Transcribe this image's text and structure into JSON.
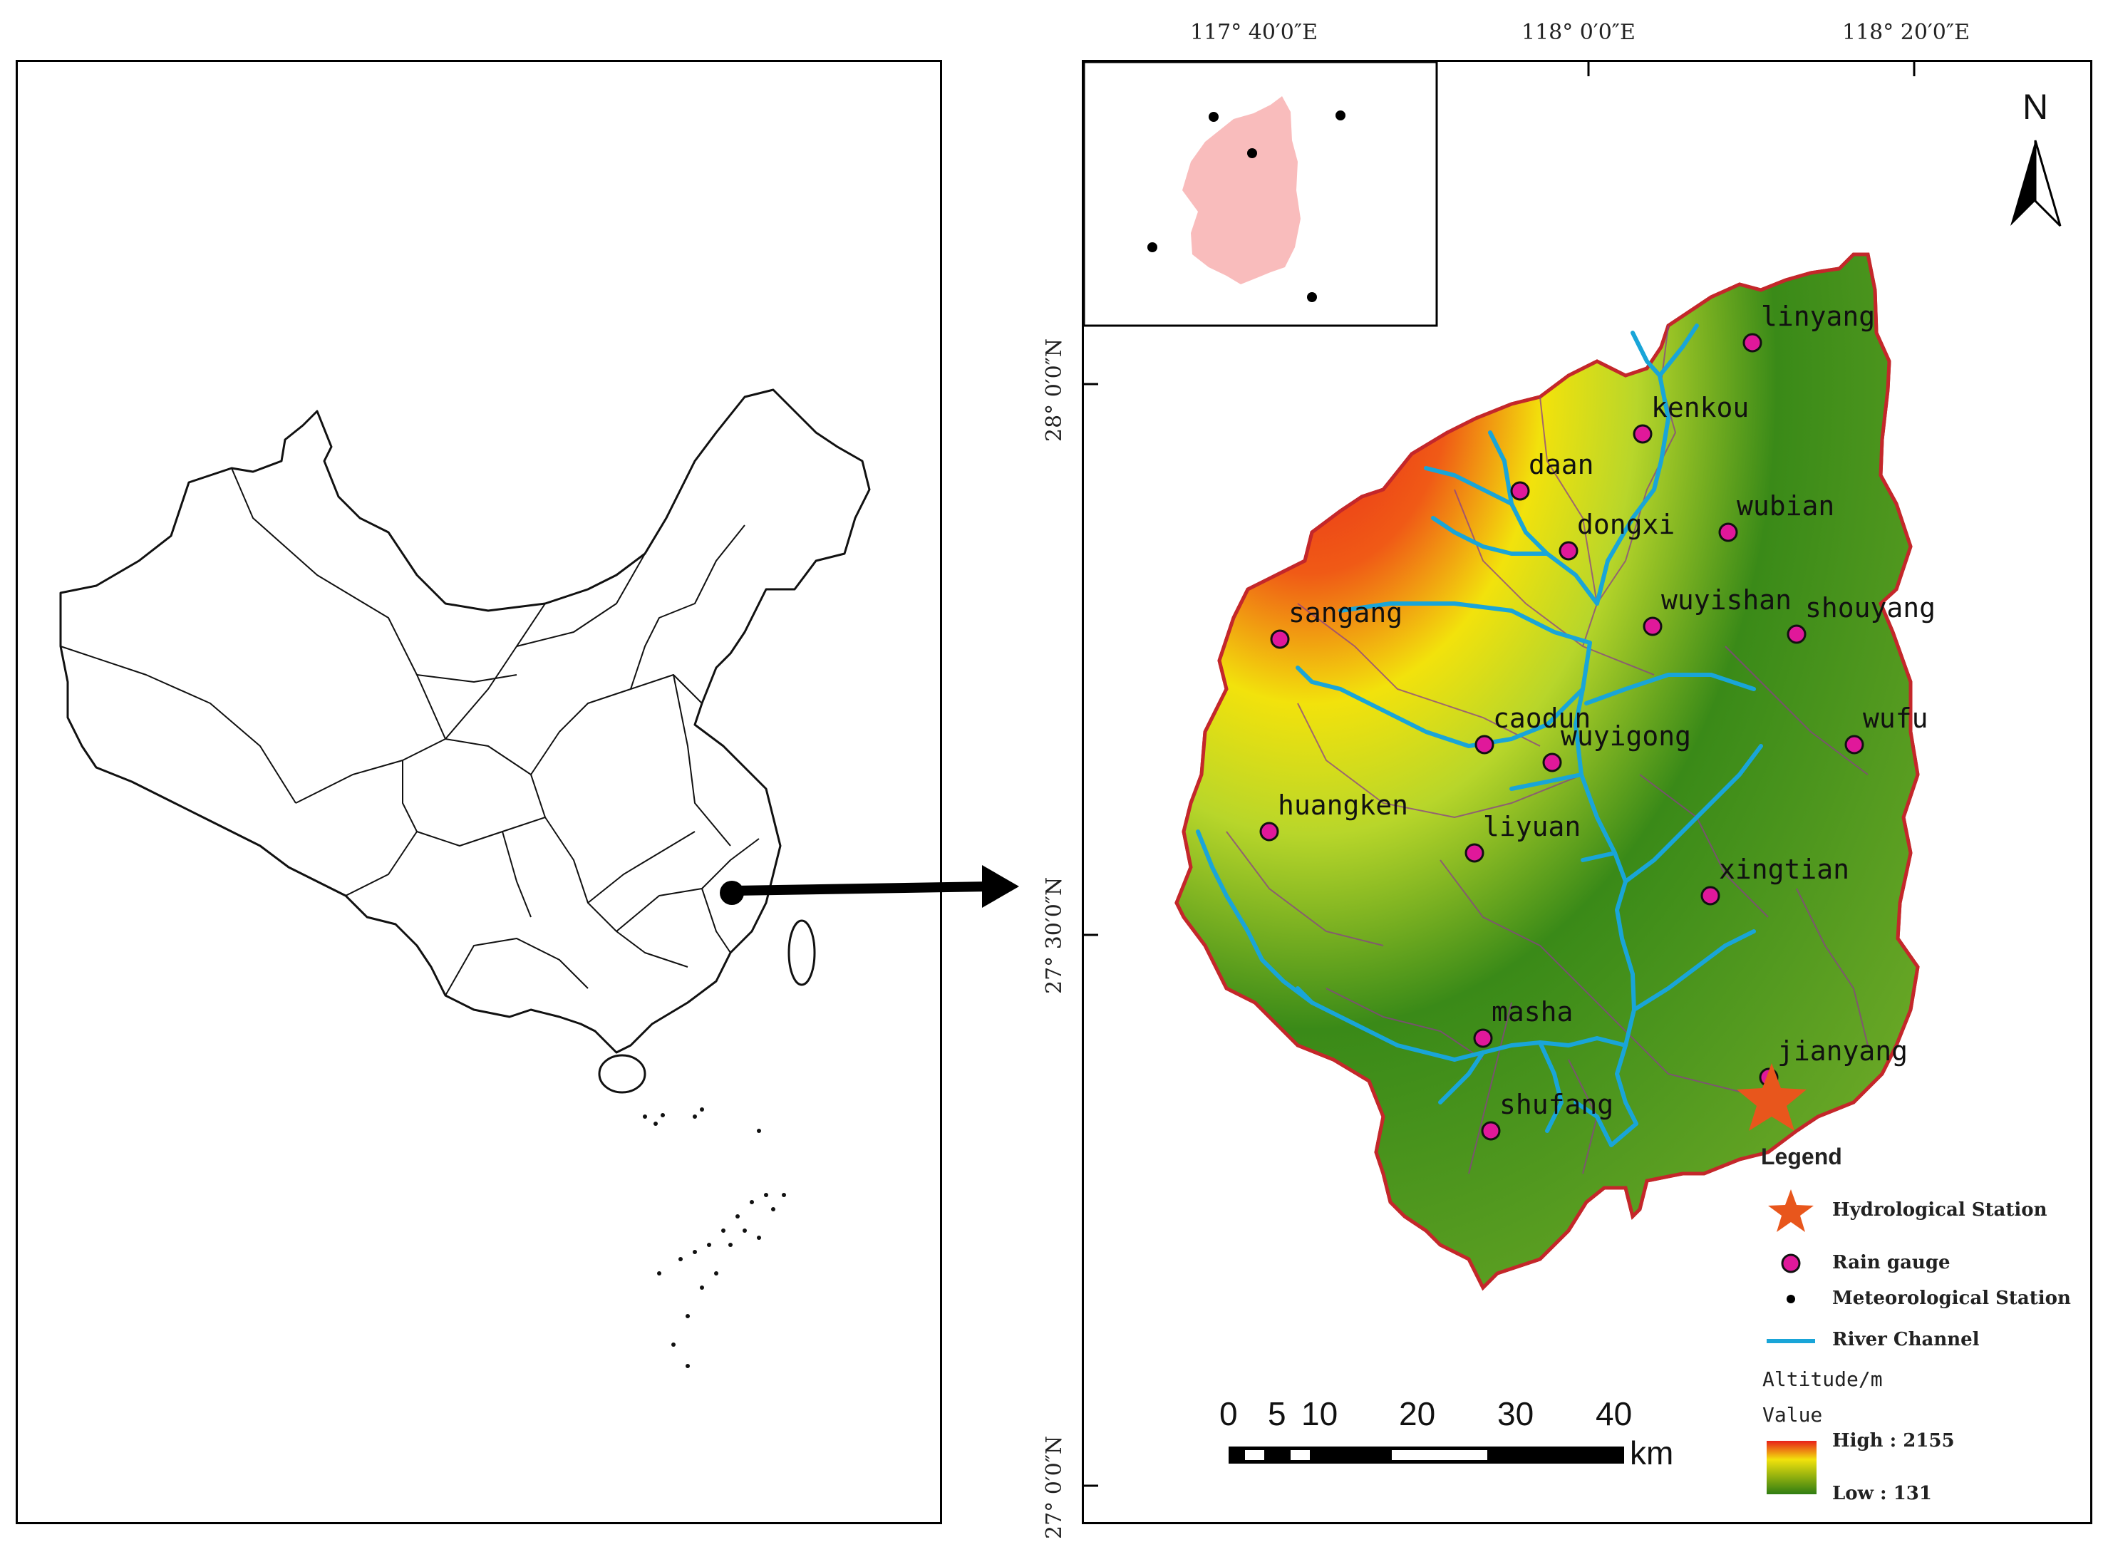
{
  "coordinates": {
    "lon": [
      "117° 40′0″E",
      "118° 0′0″E",
      "118° 20′0″E"
    ],
    "lat": [
      "28° 0′0″N",
      "27° 30′0″N",
      "27° 0′0″N"
    ]
  },
  "north_arrow": "N",
  "stations": [
    {
      "name": "linyang"
    },
    {
      "name": "kenkou"
    },
    {
      "name": "daan"
    },
    {
      "name": "dongxi"
    },
    {
      "name": "wubian"
    },
    {
      "name": "wuyishan"
    },
    {
      "name": "shouyang"
    },
    {
      "name": "sangang"
    },
    {
      "name": "caodun"
    },
    {
      "name": "wuyigong"
    },
    {
      "name": "wufu"
    },
    {
      "name": "huangken"
    },
    {
      "name": "liyuan"
    },
    {
      "name": "xingtian"
    },
    {
      "name": "masha"
    },
    {
      "name": "jianyang"
    },
    {
      "name": "shufang"
    }
  ],
  "legend": {
    "title": "Legend",
    "hydrological_station": "Hydrological Station",
    "rain_gauge": "Rain gauge",
    "meteorological_station": "Meteorological Station",
    "river_channel": "River Channel",
    "altitude_title": "Altitude/m",
    "value_label": "Value",
    "high": "High : 2155",
    "low": "Low : 131"
  },
  "scale_bar": {
    "ticks": [
      "0",
      "5",
      "10",
      "20",
      "30",
      "40"
    ],
    "unit": "km"
  },
  "colors": {
    "basin_high": "#e8201a",
    "basin_mid": "#f2e20c",
    "basin_low": "#2f7d12",
    "boundary": "#c4272a",
    "river": "#19a5d8",
    "rain_gauge": "#e0189a",
    "hydro_station": "#e8561c",
    "inset_basin": "#f9bcbc"
  }
}
